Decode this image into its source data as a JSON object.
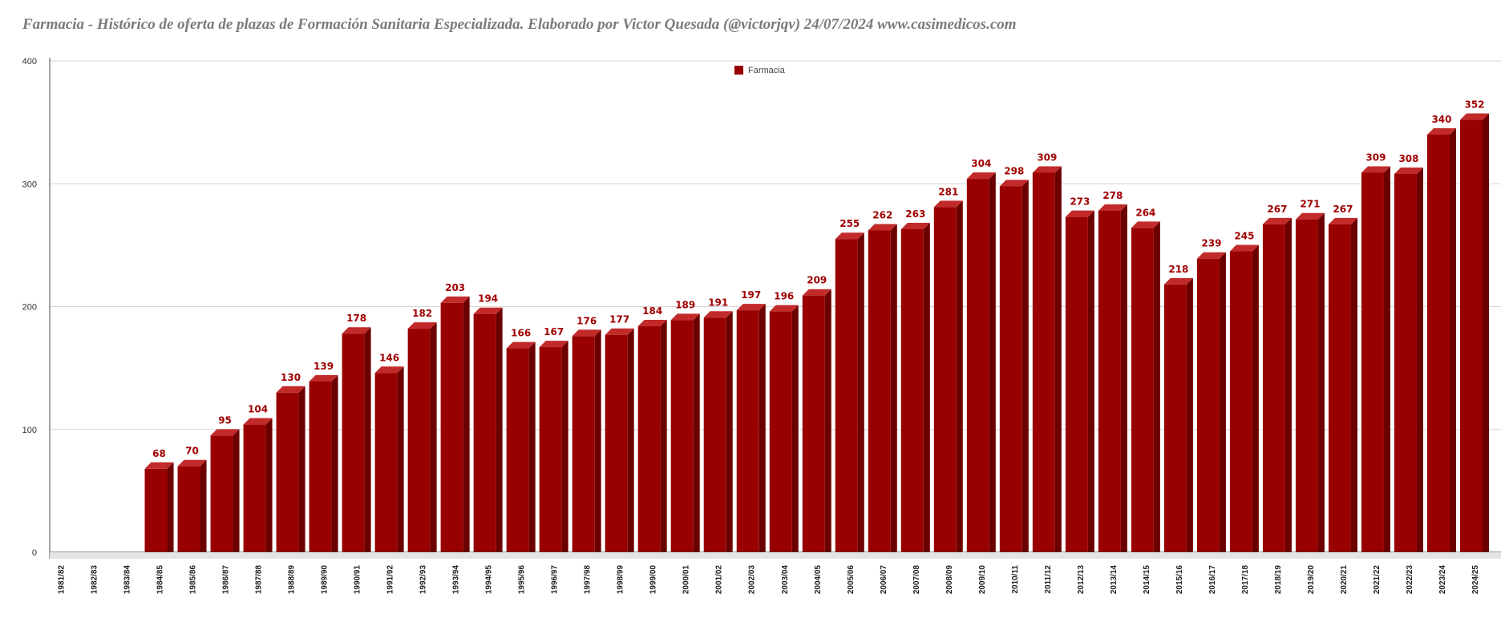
{
  "title": "Farmacia - Histórico de oferta de plazas de Formación Sanitaria Especializada. Elaborado por Victor Quesada (@victorjqv)  24/07/2024 www.casimedicos.com",
  "colors": {
    "bar_front": "#990000",
    "bar_side": "#6b0000",
    "bar_top": "#c22a2a",
    "label": "#a00000",
    "grid": "#d6d6d6",
    "title": "#7a7a7a"
  },
  "chart_data": {
    "type": "bar",
    "categories": [
      "1981/82",
      "1982/83",
      "1983/84",
      "1984/85",
      "1985/86",
      "1986/87",
      "1987/88",
      "1988/89",
      "1989/90",
      "1990/91",
      "1991/92",
      "1992/93",
      "1993/94",
      "1994/95",
      "1995/96",
      "1996/97",
      "1997/98",
      "1998/99",
      "1999/00",
      "2000/01",
      "2001/02",
      "2002/03",
      "2003/04",
      "2004/05",
      "2005/06",
      "2006/07",
      "2007/08",
      "2008/09",
      "2009/10",
      "2010/11",
      "2011/12",
      "2012/13",
      "2013/14",
      "2014/15",
      "2015/16",
      "2016/17",
      "2017/18",
      "2018/19",
      "2019/20",
      "2020/21",
      "2021/22",
      "2022/23",
      "2023/24",
      "2024/25"
    ],
    "series": [
      {
        "name": "Farmacia",
        "values": [
          null,
          null,
          null,
          68,
          70,
          95,
          104,
          130,
          139,
          178,
          146,
          182,
          203,
          194,
          166,
          167,
          176,
          177,
          184,
          189,
          191,
          197,
          196,
          209,
          255,
          262,
          263,
          281,
          304,
          298,
          309,
          273,
          278,
          264,
          218,
          239,
          245,
          267,
          271,
          267,
          309,
          308,
          340,
          352
        ]
      }
    ],
    "ylim": [
      0,
      400
    ],
    "yticks": [
      0,
      100,
      200,
      300,
      400
    ],
    "grid": true,
    "legend_position": "top-center",
    "style": "3d-bar"
  }
}
